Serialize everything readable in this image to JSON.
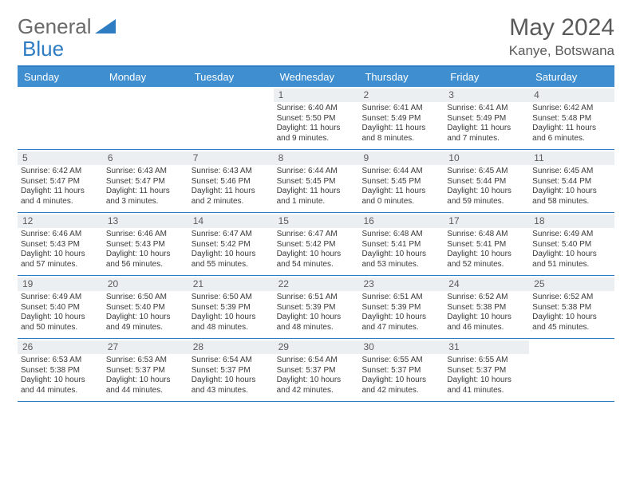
{
  "logo": {
    "text1": "General",
    "text2": "Blue"
  },
  "title": {
    "month": "May 2024",
    "location": "Kanye, Botswana"
  },
  "colors": {
    "header_bar": "#3e8ed0",
    "rule": "#2e7cc2",
    "daynum_bg": "#eceff1",
    "text": "#3a3a3a",
    "logo_gray": "#6a6a6a",
    "logo_blue": "#2e7cc2",
    "white": "#ffffff"
  },
  "daynames": [
    "Sunday",
    "Monday",
    "Tuesday",
    "Wednesday",
    "Thursday",
    "Friday",
    "Saturday"
  ],
  "weeks": [
    [
      null,
      null,
      null,
      {
        "n": "1",
        "sr": "Sunrise: 6:40 AM",
        "ss": "Sunset: 5:50 PM",
        "dl": "Daylight: 11 hours and 9 minutes."
      },
      {
        "n": "2",
        "sr": "Sunrise: 6:41 AM",
        "ss": "Sunset: 5:49 PM",
        "dl": "Daylight: 11 hours and 8 minutes."
      },
      {
        "n": "3",
        "sr": "Sunrise: 6:41 AM",
        "ss": "Sunset: 5:49 PM",
        "dl": "Daylight: 11 hours and 7 minutes."
      },
      {
        "n": "4",
        "sr": "Sunrise: 6:42 AM",
        "ss": "Sunset: 5:48 PM",
        "dl": "Daylight: 11 hours and 6 minutes."
      }
    ],
    [
      {
        "n": "5",
        "sr": "Sunrise: 6:42 AM",
        "ss": "Sunset: 5:47 PM",
        "dl": "Daylight: 11 hours and 4 minutes."
      },
      {
        "n": "6",
        "sr": "Sunrise: 6:43 AM",
        "ss": "Sunset: 5:47 PM",
        "dl": "Daylight: 11 hours and 3 minutes."
      },
      {
        "n": "7",
        "sr": "Sunrise: 6:43 AM",
        "ss": "Sunset: 5:46 PM",
        "dl": "Daylight: 11 hours and 2 minutes."
      },
      {
        "n": "8",
        "sr": "Sunrise: 6:44 AM",
        "ss": "Sunset: 5:45 PM",
        "dl": "Daylight: 11 hours and 1 minute."
      },
      {
        "n": "9",
        "sr": "Sunrise: 6:44 AM",
        "ss": "Sunset: 5:45 PM",
        "dl": "Daylight: 11 hours and 0 minutes."
      },
      {
        "n": "10",
        "sr": "Sunrise: 6:45 AM",
        "ss": "Sunset: 5:44 PM",
        "dl": "Daylight: 10 hours and 59 minutes."
      },
      {
        "n": "11",
        "sr": "Sunrise: 6:45 AM",
        "ss": "Sunset: 5:44 PM",
        "dl": "Daylight: 10 hours and 58 minutes."
      }
    ],
    [
      {
        "n": "12",
        "sr": "Sunrise: 6:46 AM",
        "ss": "Sunset: 5:43 PM",
        "dl": "Daylight: 10 hours and 57 minutes."
      },
      {
        "n": "13",
        "sr": "Sunrise: 6:46 AM",
        "ss": "Sunset: 5:43 PM",
        "dl": "Daylight: 10 hours and 56 minutes."
      },
      {
        "n": "14",
        "sr": "Sunrise: 6:47 AM",
        "ss": "Sunset: 5:42 PM",
        "dl": "Daylight: 10 hours and 55 minutes."
      },
      {
        "n": "15",
        "sr": "Sunrise: 6:47 AM",
        "ss": "Sunset: 5:42 PM",
        "dl": "Daylight: 10 hours and 54 minutes."
      },
      {
        "n": "16",
        "sr": "Sunrise: 6:48 AM",
        "ss": "Sunset: 5:41 PM",
        "dl": "Daylight: 10 hours and 53 minutes."
      },
      {
        "n": "17",
        "sr": "Sunrise: 6:48 AM",
        "ss": "Sunset: 5:41 PM",
        "dl": "Daylight: 10 hours and 52 minutes."
      },
      {
        "n": "18",
        "sr": "Sunrise: 6:49 AM",
        "ss": "Sunset: 5:40 PM",
        "dl": "Daylight: 10 hours and 51 minutes."
      }
    ],
    [
      {
        "n": "19",
        "sr": "Sunrise: 6:49 AM",
        "ss": "Sunset: 5:40 PM",
        "dl": "Daylight: 10 hours and 50 minutes."
      },
      {
        "n": "20",
        "sr": "Sunrise: 6:50 AM",
        "ss": "Sunset: 5:40 PM",
        "dl": "Daylight: 10 hours and 49 minutes."
      },
      {
        "n": "21",
        "sr": "Sunrise: 6:50 AM",
        "ss": "Sunset: 5:39 PM",
        "dl": "Daylight: 10 hours and 48 minutes."
      },
      {
        "n": "22",
        "sr": "Sunrise: 6:51 AM",
        "ss": "Sunset: 5:39 PM",
        "dl": "Daylight: 10 hours and 48 minutes."
      },
      {
        "n": "23",
        "sr": "Sunrise: 6:51 AM",
        "ss": "Sunset: 5:39 PM",
        "dl": "Daylight: 10 hours and 47 minutes."
      },
      {
        "n": "24",
        "sr": "Sunrise: 6:52 AM",
        "ss": "Sunset: 5:38 PM",
        "dl": "Daylight: 10 hours and 46 minutes."
      },
      {
        "n": "25",
        "sr": "Sunrise: 6:52 AM",
        "ss": "Sunset: 5:38 PM",
        "dl": "Daylight: 10 hours and 45 minutes."
      }
    ],
    [
      {
        "n": "26",
        "sr": "Sunrise: 6:53 AM",
        "ss": "Sunset: 5:38 PM",
        "dl": "Daylight: 10 hours and 44 minutes."
      },
      {
        "n": "27",
        "sr": "Sunrise: 6:53 AM",
        "ss": "Sunset: 5:37 PM",
        "dl": "Daylight: 10 hours and 44 minutes."
      },
      {
        "n": "28",
        "sr": "Sunrise: 6:54 AM",
        "ss": "Sunset: 5:37 PM",
        "dl": "Daylight: 10 hours and 43 minutes."
      },
      {
        "n": "29",
        "sr": "Sunrise: 6:54 AM",
        "ss": "Sunset: 5:37 PM",
        "dl": "Daylight: 10 hours and 42 minutes."
      },
      {
        "n": "30",
        "sr": "Sunrise: 6:55 AM",
        "ss": "Sunset: 5:37 PM",
        "dl": "Daylight: 10 hours and 42 minutes."
      },
      {
        "n": "31",
        "sr": "Sunrise: 6:55 AM",
        "ss": "Sunset: 5:37 PM",
        "dl": "Daylight: 10 hours and 41 minutes."
      },
      null
    ]
  ]
}
